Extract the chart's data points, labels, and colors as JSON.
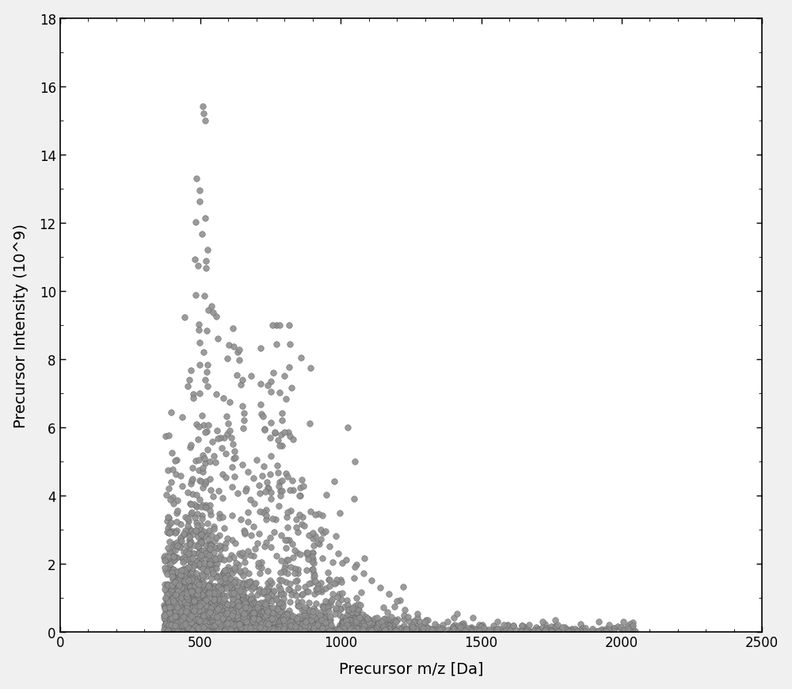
{
  "xlabel": "Precursor m/z [Da]",
  "ylabel": "Precursor Intensity (10^9)",
  "xlim": [
    0,
    2500
  ],
  "ylim": [
    0,
    18
  ],
  "xticks": [
    0,
    500,
    1000,
    1500,
    2000,
    2500
  ],
  "yticks": [
    0,
    2,
    4,
    6,
    8,
    10,
    12,
    14,
    16,
    18
  ],
  "marker_color": "#909090",
  "marker_edge_color": "#606060",
  "marker_size": 5.5,
  "background_color": "#ffffff",
  "fig_background": "#f0f0f0"
}
